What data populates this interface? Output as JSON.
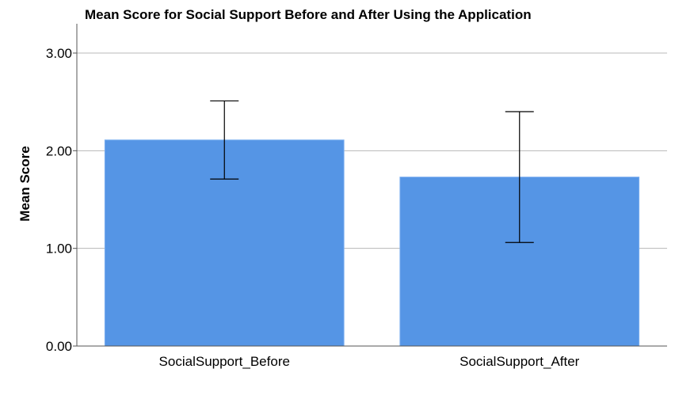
{
  "chart_data": {
    "type": "bar",
    "title": "Mean Score for Social Support Before and After Using the Application",
    "xlabel": "",
    "ylabel": "Mean Score",
    "categories": [
      "SocialSupport_Before",
      "SocialSupport_After"
    ],
    "values": [
      2.11,
      1.73
    ],
    "error_low": [
      1.71,
      1.06
    ],
    "error_high": [
      2.51,
      2.4
    ],
    "ylim": [
      0,
      3.3
    ],
    "yticks": [
      0,
      1,
      2,
      3
    ],
    "ytick_labels": [
      "0.00",
      "1.00",
      "2.00",
      "3.00"
    ],
    "grid": true,
    "bar_color": "#5595e5",
    "bar_edge_color": "#7aaef0",
    "grid_color": "#b8b8b8",
    "axis_color": "#555555"
  }
}
